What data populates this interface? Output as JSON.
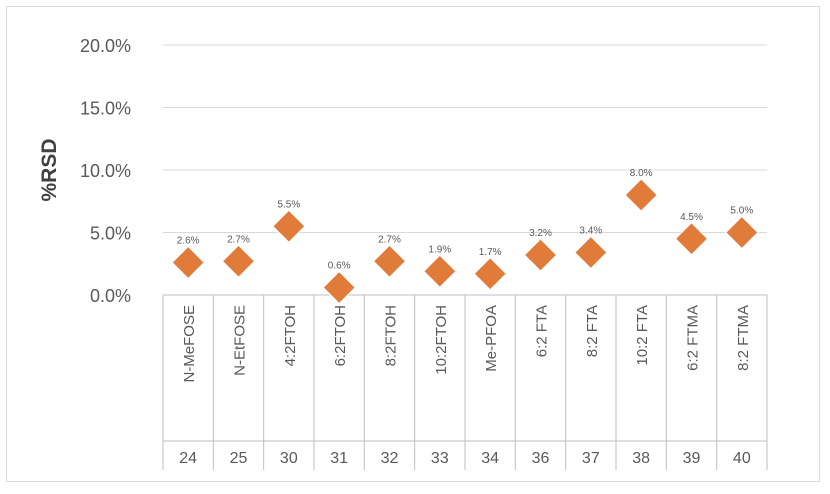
{
  "chart_data": {
    "type": "scatter",
    "title": "",
    "ylabel": "%RSD",
    "xlabel": "",
    "ylim": [
      0,
      20
    ],
    "yticks": [
      "0.0%",
      "5.0%",
      "10.0%",
      "15.0%",
      "20.0%"
    ],
    "ytick_values": [
      0,
      5,
      10,
      15,
      20
    ],
    "grid": "horizontal",
    "marker": "diamond",
    "marker_color": "#E07B39",
    "categories": [
      "N-MeFOSE",
      "N-EtFOSE",
      "4:2FTOH",
      "6:2FTOH",
      "8:2FTOH",
      "10:2FTOH",
      "Me-PFOA",
      "6:2 FTA",
      "8:2 FTA",
      "10:2 FTA",
      "6:2 FTMA",
      "8:2 FTMA"
    ],
    "group_labels": [
      "24",
      "25",
      "30",
      "31",
      "32",
      "33",
      "34",
      "36",
      "37",
      "38",
      "39",
      "40"
    ],
    "values": [
      2.6,
      2.7,
      5.5,
      0.6,
      2.7,
      1.9,
      1.7,
      3.2,
      3.4,
      8.0,
      4.5,
      5.0
    ],
    "data_labels": [
      "2.6%",
      "2.7%",
      "5.5%",
      "0.6%",
      "2.7%",
      "1.9%",
      "1.7%",
      "3.2%",
      "3.4%",
      "8.0%",
      "4.5%",
      "5.0%"
    ]
  }
}
